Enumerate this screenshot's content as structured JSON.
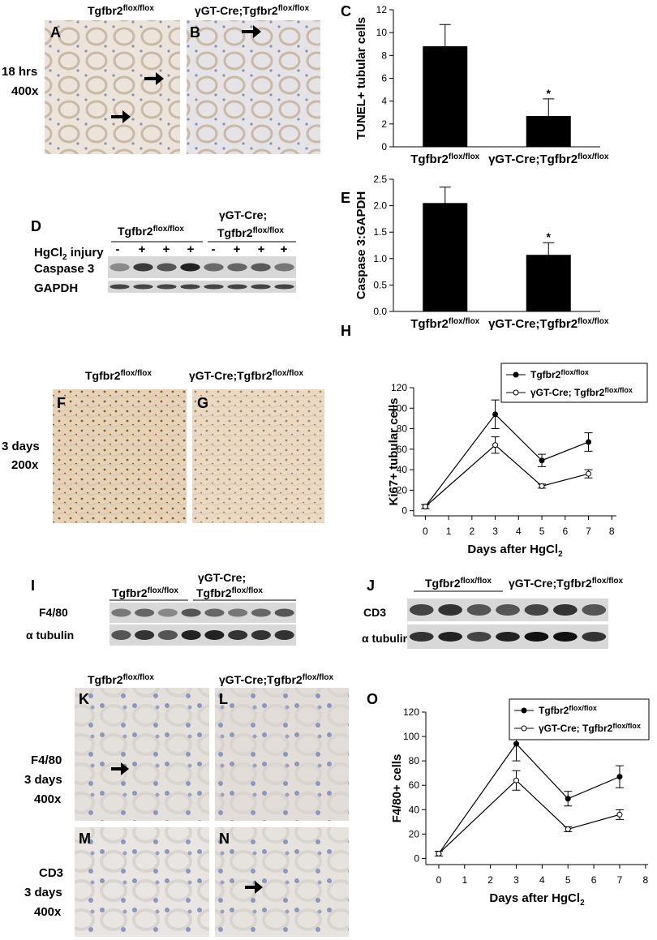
{
  "figure": {
    "panels": [
      "A",
      "B",
      "C",
      "D",
      "E",
      "F",
      "G",
      "H",
      "I",
      "J",
      "K",
      "L",
      "M",
      "N",
      "O"
    ],
    "genotypes": {
      "wt": "Tgfbr2",
      "ko": "γGT-Cre;Tgfbr2",
      "ko_line1": "γGT-Cre;",
      "sup": "flox/flox"
    },
    "conditions": [
      "18 hrs",
      "400x",
      "3 days",
      "200x",
      "F4/80",
      "3 days",
      "400x",
      "CD3",
      "3 days",
      "400x"
    ],
    "blot": {
      "injury": "HgCl",
      "injury_sub": "2",
      "injury_tail": " injury",
      "lanes": [
        "-",
        "+",
        "+",
        "+",
        "-",
        "+",
        "+",
        "+"
      ],
      "proteins": [
        "Caspase 3",
        "GAPDH",
        "F4/80",
        "α tubulin",
        "CD3",
        "α tubulin"
      ]
    }
  },
  "chart_data": [
    {
      "type": "bar",
      "ylabel": "TUNEL+ tubular cells",
      "categories": [
        "Tgfbr2",
        "γGT-Cre;Tgfbr2"
      ],
      "category_sup": [
        "flox/flox",
        "flox/flox"
      ],
      "values": [
        8.8,
        2.7
      ],
      "errors": [
        1.9,
        1.5
      ],
      "color": "#000000",
      "ylim": [
        0,
        12
      ],
      "yticks": [
        0,
        2,
        4,
        6,
        8,
        10,
        12
      ],
      "annotation": "*"
    },
    {
      "type": "bar",
      "ylabel": "Caspase 3:GAPDH",
      "categories": [
        "Tgfbr2",
        "γGT-Cre;Tgfbr2"
      ],
      "category_sup": [
        "flox/flox",
        "flox/flox"
      ],
      "values": [
        2.05,
        1.07
      ],
      "errors": [
        0.3,
        0.23
      ],
      "color": "#000000",
      "ylim": [
        0,
        2.5
      ],
      "yticks": [
        {
          "value": 0,
          "label": "0.0"
        },
        0.5,
        {
          "value": 1,
          "label": "1.0"
        },
        1.5,
        {
          "value": 2,
          "label": "2.0"
        },
        2.5
      ],
      "annotation": "*"
    },
    {
      "type": "line",
      "ylabel": "Ki67+ tubular cells",
      "xlabel": "Days after HgCl",
      "xlabel_sub": "2",
      "x": [
        0,
        3,
        5,
        7
      ],
      "series": [
        {
          "name": "Tgfbr2",
          "name_sup": "flox/flox",
          "color": "#000000",
          "marker": "filled",
          "values": [
            4,
            94,
            49,
            67
          ],
          "errors": [
            2,
            14,
            6,
            9
          ]
        },
        {
          "name": "γGT-Cre; Tgfbr2",
          "name_sup": "flox/flox",
          "color": "#000000",
          "marker": "open",
          "values": [
            4,
            64,
            24,
            36
          ],
          "errors": [
            2,
            8,
            2,
            4
          ]
        }
      ],
      "xlim": [
        -0.5,
        8.2
      ],
      "xticks": [
        0,
        1,
        2,
        3,
        4,
        5,
        6,
        7,
        8
      ],
      "ylim": [
        -5,
        120
      ],
      "yticks": [
        0,
        20,
        40,
        60,
        80,
        100,
        120
      ],
      "legend": "upper right"
    },
    {
      "type": "line",
      "ylabel": "F4/80+ cells",
      "xlabel": "Days after HgCl",
      "xlabel_sub": "2",
      "x": [
        0,
        3,
        5,
        7
      ],
      "series": [
        {
          "name": "Tgfbr2",
          "name_sup": "flox/flox",
          "color": "#000000",
          "marker": "filled",
          "values": [
            4,
            94,
            49,
            67
          ],
          "errors": [
            2,
            14,
            6,
            9
          ]
        },
        {
          "name": "γGT-Cre; Tgfbr2",
          "name_sup": "flox/flox",
          "color": "#000000",
          "marker": "open",
          "values": [
            4,
            64,
            24,
            36
          ],
          "errors": [
            2,
            8,
            2,
            4
          ]
        }
      ],
      "xlim": [
        -0.5,
        8.1
      ],
      "xticks": [
        0,
        1,
        2,
        3,
        4,
        5,
        6,
        7,
        8
      ],
      "ylim": [
        -5,
        120
      ],
      "yticks": [
        0,
        20,
        40,
        60,
        80,
        100,
        120
      ],
      "legend": "upper right"
    }
  ]
}
